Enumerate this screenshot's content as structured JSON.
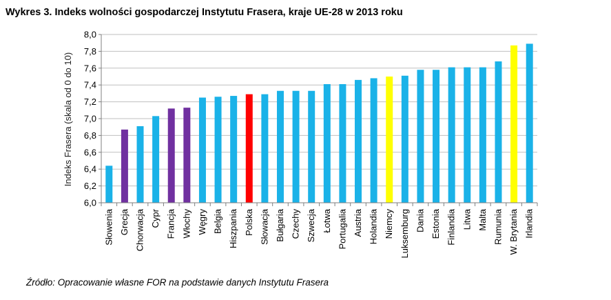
{
  "title": "Wykres 3. Indeks wolności gospodarczej Instytutu Frasera, kraje UE-28 w 2013 roku",
  "source": "Źródło: Opracowanie własne FOR na podstawie danych Instytutu Frasera",
  "chart_data": {
    "type": "bar",
    "ylabel": "Indeks Frasera (skala od 0 do 10)",
    "ylim": [
      6.0,
      8.0
    ],
    "ytick_step": 0.2,
    "grid": true,
    "colors": {
      "default": "#1AB2E8",
      "purple": "#7030A0",
      "red": "#FF0000",
      "yellow": "#FFFF00"
    },
    "categories": [
      "Słowenia",
      "Grecja",
      "Chorwacja",
      "Cypr",
      "Francja",
      "Włochy",
      "Węgry",
      "Belgia",
      "Hiszpania",
      "Polska",
      "Słowacja",
      "Bułgaria",
      "Czechy",
      "Szwecja",
      "Łotwa",
      "Portugalia",
      "Austria",
      "Holandia",
      "Niemcy",
      "Luksemburg",
      "Dania",
      "Estonia",
      "Finlandia",
      "Litwa",
      "Malta",
      "Rumunia",
      "W. Brytania",
      "Irlandia"
    ],
    "values": [
      6.44,
      6.87,
      6.91,
      7.03,
      7.12,
      7.13,
      7.25,
      7.26,
      7.27,
      7.29,
      7.29,
      7.33,
      7.33,
      7.33,
      7.41,
      7.41,
      7.46,
      7.48,
      7.5,
      7.51,
      7.58,
      7.58,
      7.61,
      7.61,
      7.61,
      7.68,
      7.87,
      7.89
    ],
    "bar_colors": [
      "default",
      "purple",
      "default",
      "default",
      "purple",
      "purple",
      "default",
      "default",
      "default",
      "red",
      "default",
      "default",
      "default",
      "default",
      "default",
      "default",
      "default",
      "default",
      "yellow",
      "default",
      "default",
      "default",
      "default",
      "default",
      "default",
      "default",
      "yellow",
      "default"
    ]
  }
}
